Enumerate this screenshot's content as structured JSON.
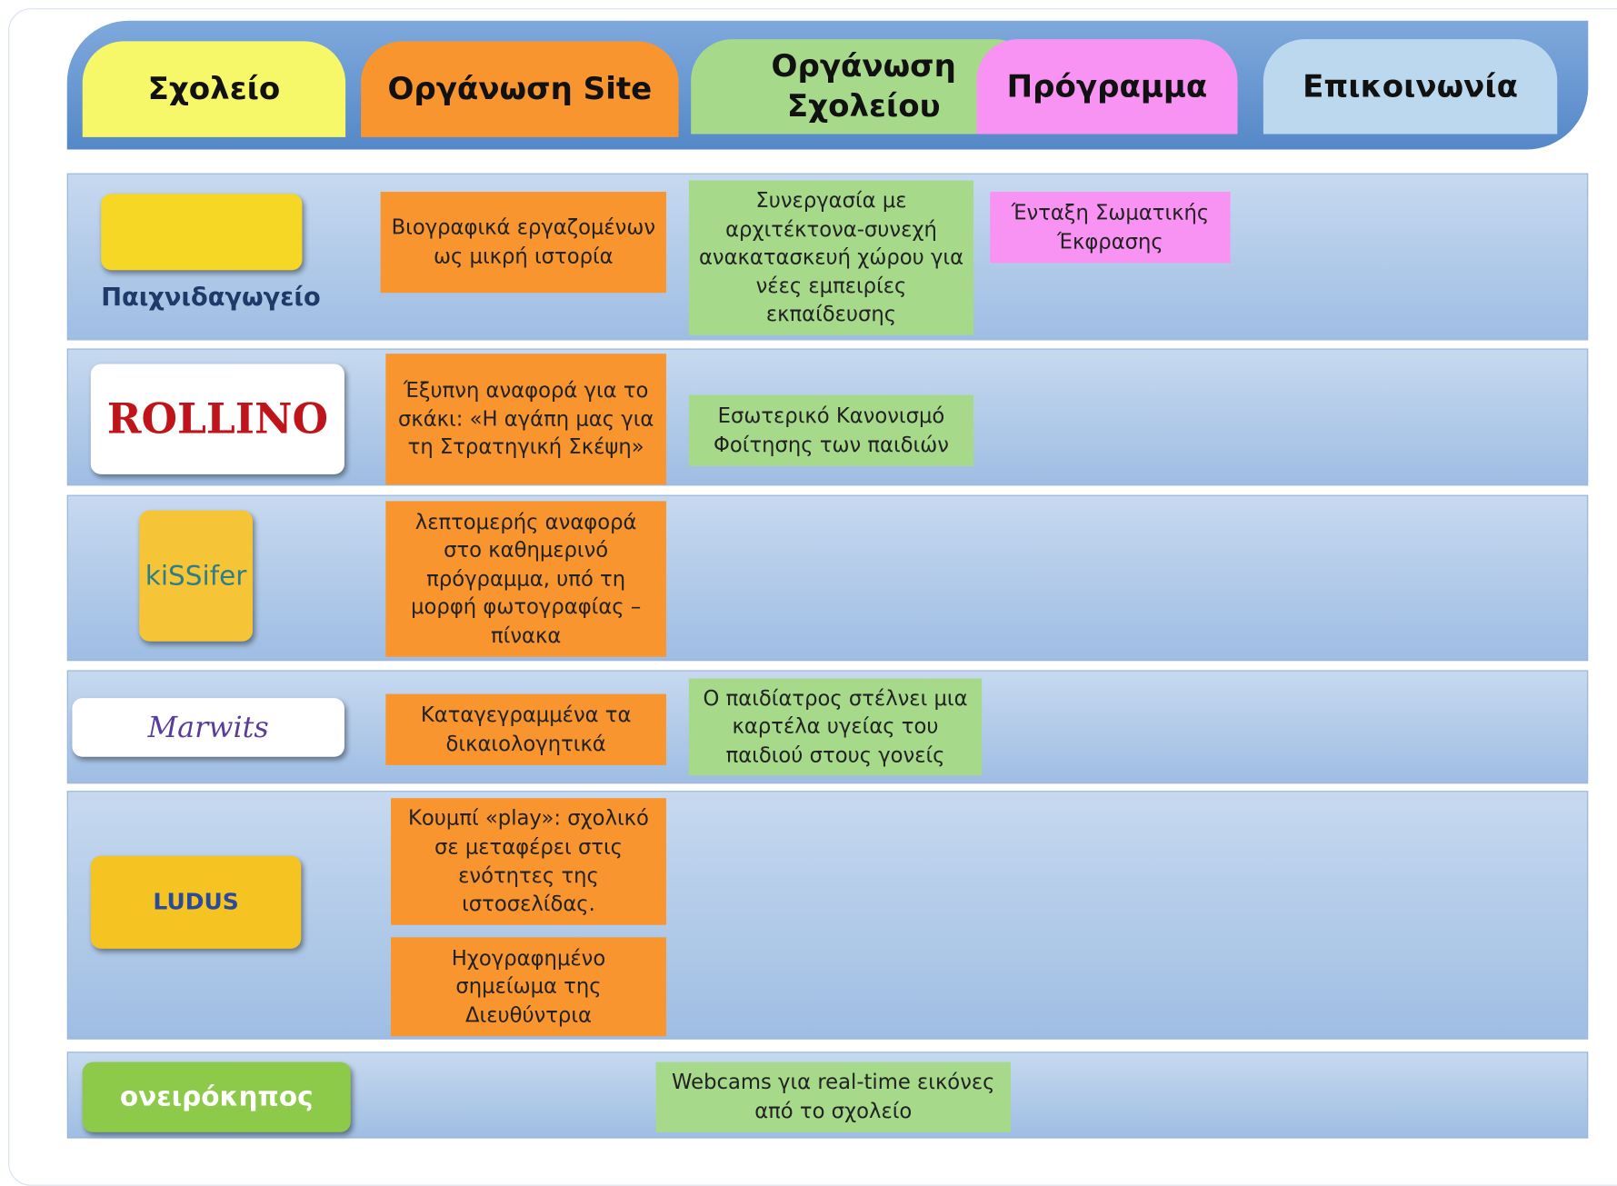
{
  "header": {
    "tabs": [
      "Σχολείο",
      "Οργάνωση Site",
      "Οργάνωση Σχολείου",
      "Πρόγραμμα",
      "Επικοινωνία"
    ]
  },
  "rows": [
    {
      "logo": "Παιχνιδαγωγείο",
      "site": [
        "Βιογραφικά εργαζομένων ως μικρή ιστορία"
      ],
      "school": "Συνεργασία με αρχιτέκτονα-συνεχή ανακατασκευή χώρου για νέες εμπειρίες εκπαίδευσης",
      "program": "Ένταξη Σωματικής Έκφρασης"
    },
    {
      "logo": "ROLLINO",
      "site": [
        "Έξυπνη αναφορά για το σκάκι: «Η αγάπη μας για τη Στρατηγική Σκέψη»"
      ],
      "school": "Εσωτερικό Κανονισμό Φοίτησης των παιδιών"
    },
    {
      "logo": "kiSSifer",
      "site": [
        "λεπτομερής αναφορά στο καθημερινό πρόγραμμα, υπό τη μορφή φωτογραφίας – πίνακα"
      ]
    },
    {
      "logo": "Marwits",
      "site": [
        "Καταγεγραμμένα τα δικαιολογητικά"
      ],
      "school": "Ο παιδίατρος στέλνει μια καρτέλα υγείας του παιδιού στους γονείς"
    },
    {
      "logo": "LUDUS",
      "site": [
        "Κουμπί «play»: σχολικό σε μεταφέρει στις ενότητες της ιστοσελίδας.",
        "Ηχογραφημένο σημείωμα της Διευθύντρια"
      ]
    },
    {
      "logo": "ονειρόκηπος",
      "school": "Webcams για real-time εικόνες από το σχολείο"
    }
  ]
}
